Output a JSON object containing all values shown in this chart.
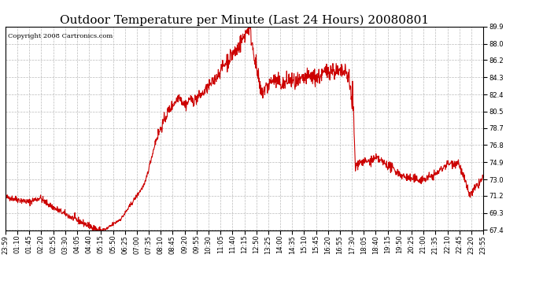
{
  "title": "Outdoor Temperature per Minute (Last 24 Hours) 20080801",
  "copyright_text": "Copyright 2008 Cartronics.com",
  "line_color": "#cc0000",
  "background_color": "#ffffff",
  "grid_color": "#bbbbbb",
  "yticks": [
    67.4,
    69.3,
    71.2,
    73.0,
    74.9,
    76.8,
    78.7,
    80.5,
    82.4,
    84.3,
    86.2,
    88.0,
    89.9
  ],
  "ylim": [
    67.4,
    89.9
  ],
  "xtick_labels": [
    "23:59",
    "01:10",
    "01:45",
    "02:20",
    "02:55",
    "03:30",
    "04:05",
    "04:40",
    "05:15",
    "05:50",
    "06:25",
    "07:00",
    "07:35",
    "08:10",
    "08:45",
    "09:20",
    "09:55",
    "10:30",
    "11:05",
    "11:40",
    "12:15",
    "12:50",
    "13:25",
    "14:00",
    "14:35",
    "15:10",
    "15:45",
    "16:20",
    "16:55",
    "17:30",
    "18:05",
    "18:40",
    "19:15",
    "19:50",
    "20:25",
    "21:00",
    "21:35",
    "22:10",
    "22:45",
    "23:20",
    "23:55"
  ],
  "title_fontsize": 11,
  "axis_fontsize": 6,
  "copyright_fontsize": 6,
  "line_width": 0.8,
  "fig_width": 6.9,
  "fig_height": 3.75,
  "dpi": 100
}
